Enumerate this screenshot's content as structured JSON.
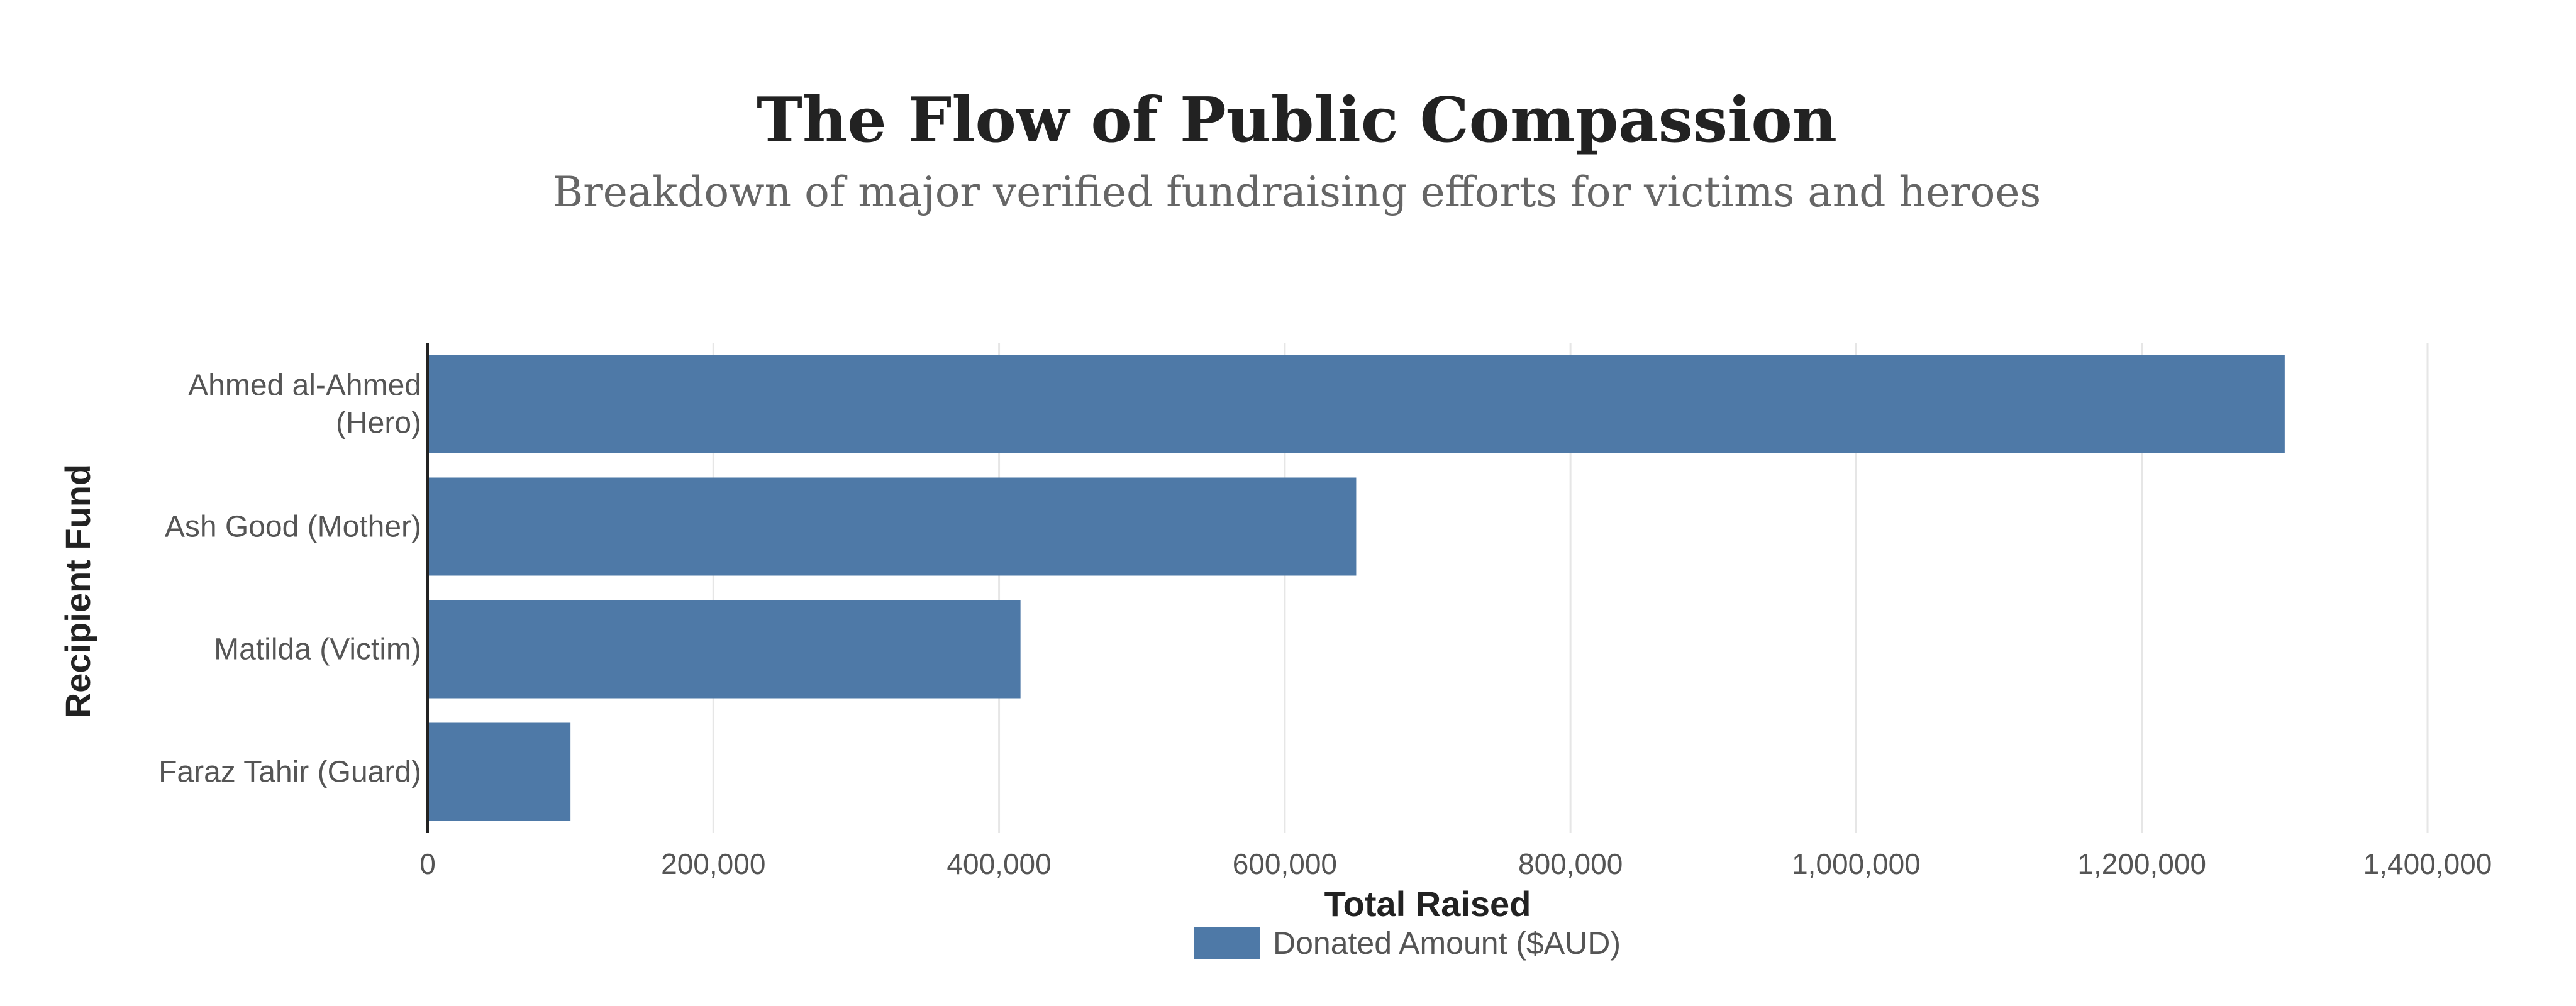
{
  "chart_data": {
    "type": "bar",
    "orientation": "horizontal",
    "title": "The Flow of Public Compassion",
    "subtitle": "Breakdown of major verified fundraising efforts for victims and heroes",
    "xlabel": "Total Raised",
    "ylabel": "Recipient Fund",
    "categories": [
      [
        "Ahmed al-Ahmed",
        "(Hero)"
      ],
      [
        "Ash Good (Mother)"
      ],
      [
        "Matilda (Victim)"
      ],
      [
        "Faraz Tahir (Guard)"
      ]
    ],
    "series": [
      {
        "name": "Donated Amount ($AUD)",
        "color": "#4e79a7",
        "values": [
          1300000,
          650000,
          415000,
          100000
        ]
      }
    ],
    "xlim": [
      0,
      1400000
    ],
    "x_ticks": [
      "0",
      "200,000",
      "400,000",
      "600,000",
      "800,000",
      "1,000,000",
      "1,200,000",
      "1,400,000"
    ],
    "x_tick_values": [
      0,
      200000,
      400000,
      600000,
      800000,
      1000000,
      1200000,
      1400000
    ],
    "grid": "vertical",
    "legend_position": "bottom-center"
  }
}
